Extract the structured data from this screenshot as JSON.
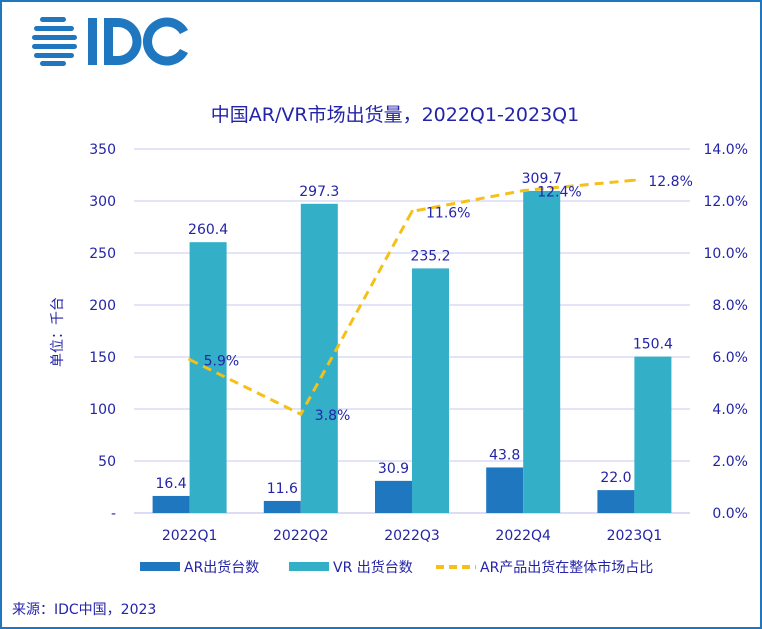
{
  "logo": {
    "text": "IDC",
    "color": "#1f77c0"
  },
  "source": "来源：IDC中国，2023",
  "chart_data": {
    "type": "bar+line",
    "title": "中国AR/VR市场出货量，2022Q1-2023Q1",
    "ylabel": "单位：千台",
    "categories": [
      "2022Q1",
      "2022Q2",
      "2022Q3",
      "2022Q4",
      "2023Q1"
    ],
    "ylim": [
      0,
      350
    ],
    "yticks": [
      0,
      50,
      100,
      150,
      200,
      250,
      300,
      350
    ],
    "ytick_labels": [
      "-",
      "50",
      "100",
      "150",
      "200",
      "250",
      "300",
      "350"
    ],
    "y2lim": [
      0,
      14
    ],
    "y2ticks": [
      0,
      2,
      4,
      6,
      8,
      10,
      12,
      14
    ],
    "y2tick_labels": [
      "0.0%",
      "2.0%",
      "4.0%",
      "6.0%",
      "8.0%",
      "10.0%",
      "12.0%",
      "14.0%"
    ],
    "grid": true,
    "legend_position": "bottom",
    "series": [
      {
        "name": "AR出货台数",
        "type": "bar",
        "axis": "left",
        "color": "#1f77c0",
        "values": [
          16.4,
          11.6,
          30.9,
          43.8,
          22.0
        ],
        "labels": [
          "16.4",
          "11.6",
          "30.9",
          "43.8",
          "22.0"
        ]
      },
      {
        "name": "VR 出货台数",
        "type": "bar",
        "axis": "left",
        "color": "#33afc8",
        "values": [
          260.4,
          297.3,
          235.2,
          309.7,
          150.4
        ],
        "labels": [
          "260.4",
          "297.3",
          "235.2",
          "309.7",
          "150.4"
        ]
      },
      {
        "name": "AR产品出货在整体市场占比",
        "type": "line",
        "style": "dashed",
        "axis": "right",
        "color": "#f5c018",
        "values": [
          5.9,
          3.8,
          11.6,
          12.4,
          12.8
        ],
        "labels": [
          "5.9%",
          "3.8%",
          "11.6%",
          "12.4%",
          "12.8%"
        ]
      }
    ]
  }
}
